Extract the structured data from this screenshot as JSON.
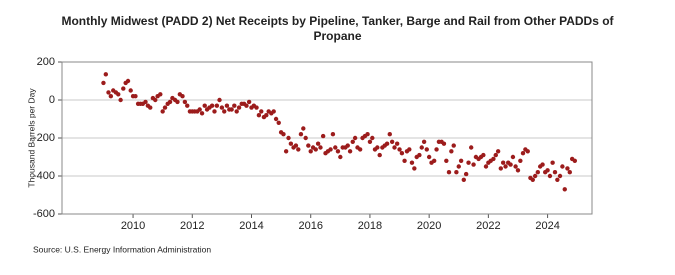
{
  "chart_data": {
    "type": "scatter",
    "title": "Monthly Midwest (PADD 2) Net Receipts by Pipeline, Tanker, Barge and Rail from Other PADDs of Propane",
    "ylabel": "Thousand Barrels per Day",
    "source": "Source: U.S. Energy Information Administration",
    "xlim": [
      2007.6,
      2025.5
    ],
    "xticks": [
      2010,
      2012,
      2014,
      2016,
      2018,
      2020,
      2022,
      2024
    ],
    "ylim": [
      -600,
      200
    ],
    "yticks": [
      -600,
      -400,
      -200,
      0,
      200
    ],
    "grid": true,
    "series": [
      {
        "name": "Net Receipts",
        "color": "#9c1c1c",
        "x": [
          2009.0,
          2009.08,
          2009.17,
          2009.25,
          2009.33,
          2009.42,
          2009.5,
          2009.58,
          2009.67,
          2009.75,
          2009.83,
          2009.92,
          2010.0,
          2010.08,
          2010.17,
          2010.25,
          2010.33,
          2010.42,
          2010.5,
          2010.58,
          2010.67,
          2010.75,
          2010.83,
          2010.92,
          2011.0,
          2011.08,
          2011.17,
          2011.25,
          2011.33,
          2011.42,
          2011.5,
          2011.58,
          2011.67,
          2011.75,
          2011.83,
          2011.92,
          2012.0,
          2012.08,
          2012.17,
          2012.25,
          2012.33,
          2012.42,
          2012.5,
          2012.58,
          2012.67,
          2012.75,
          2012.83,
          2012.92,
          2013.0,
          2013.08,
          2013.17,
          2013.25,
          2013.33,
          2013.42,
          2013.5,
          2013.58,
          2013.67,
          2013.75,
          2013.83,
          2013.92,
          2014.0,
          2014.08,
          2014.17,
          2014.25,
          2014.33,
          2014.42,
          2014.5,
          2014.58,
          2014.67,
          2014.75,
          2014.83,
          2014.92,
          2015.0,
          2015.08,
          2015.17,
          2015.25,
          2015.33,
          2015.42,
          2015.5,
          2015.58,
          2015.67,
          2015.75,
          2015.83,
          2015.92,
          2016.0,
          2016.08,
          2016.17,
          2016.25,
          2016.33,
          2016.42,
          2016.5,
          2016.58,
          2016.67,
          2016.75,
          2016.83,
          2016.92,
          2017.0,
          2017.08,
          2017.17,
          2017.25,
          2017.33,
          2017.42,
          2017.5,
          2017.58,
          2017.67,
          2017.75,
          2017.83,
          2017.92,
          2018.0,
          2018.08,
          2018.17,
          2018.25,
          2018.33,
          2018.42,
          2018.5,
          2018.58,
          2018.67,
          2018.75,
          2018.83,
          2018.92,
          2019.0,
          2019.08,
          2019.17,
          2019.25,
          2019.33,
          2019.42,
          2019.5,
          2019.58,
          2019.67,
          2019.75,
          2019.83,
          2019.92,
          2020.0,
          2020.08,
          2020.17,
          2020.25,
          2020.33,
          2020.42,
          2020.5,
          2020.58,
          2020.67,
          2020.75,
          2020.83,
          2020.92,
          2021.0,
          2021.08,
          2021.17,
          2021.25,
          2021.33,
          2021.42,
          2021.5,
          2021.58,
          2021.67,
          2021.75,
          2021.83,
          2021.92,
          2022.0,
          2022.08,
          2022.17,
          2022.25,
          2022.33,
          2022.42,
          2022.5,
          2022.58,
          2022.67,
          2022.75,
          2022.83,
          2022.92,
          2023.0,
          2023.08,
          2023.17,
          2023.25,
          2023.33,
          2023.42,
          2023.5,
          2023.58,
          2023.67,
          2023.75,
          2023.83,
          2023.92,
          2024.0,
          2024.08,
          2024.17,
          2024.25,
          2024.33,
          2024.42,
          2024.5,
          2024.58,
          2024.67,
          2024.75,
          2024.83,
          2024.92
        ],
        "values": [
          90,
          135,
          40,
          20,
          50,
          40,
          30,
          0,
          60,
          90,
          100,
          50,
          20,
          20,
          -20,
          -20,
          -20,
          -10,
          -30,
          -40,
          10,
          0,
          20,
          30,
          -60,
          -40,
          -20,
          -10,
          10,
          0,
          -10,
          30,
          20,
          -10,
          -30,
          -60,
          -60,
          -60,
          -60,
          -50,
          -70,
          -30,
          -50,
          -40,
          -30,
          -60,
          -30,
          0,
          -40,
          -60,
          -30,
          -50,
          -50,
          -30,
          -60,
          -40,
          -20,
          -20,
          -30,
          -10,
          -40,
          -30,
          -40,
          -80,
          -60,
          -90,
          -80,
          -60,
          -70,
          -60,
          -100,
          -120,
          -170,
          -180,
          -270,
          -200,
          -230,
          -250,
          -240,
          -260,
          -180,
          -150,
          -200,
          -240,
          -270,
          -250,
          -260,
          -230,
          -250,
          -190,
          -280,
          -270,
          -260,
          -180,
          -250,
          -270,
          -300,
          -250,
          -250,
          -240,
          -270,
          -220,
          -200,
          -250,
          -260,
          -200,
          -190,
          -180,
          -220,
          -200,
          -260,
          -250,
          -290,
          -250,
          -240,
          -230,
          -180,
          -220,
          -250,
          -230,
          -260,
          -280,
          -320,
          -270,
          -260,
          -330,
          -360,
          -300,
          -290,
          -250,
          -220,
          -260,
          -300,
          -330,
          -320,
          -260,
          -220,
          -220,
          -230,
          -320,
          -380,
          -270,
          -240,
          -380,
          -350,
          -320,
          -420,
          -390,
          -330,
          -250,
          -340,
          -300,
          -310,
          -300,
          -290,
          -350,
          -330,
          -320,
          -310,
          -290,
          -270,
          -360,
          -330,
          -350,
          -330,
          -340,
          -300,
          -350,
          -370,
          -320,
          -280,
          -260,
          -270,
          -410,
          -420,
          -400,
          -380,
          -350,
          -340,
          -380,
          -370,
          -400,
          -330,
          -380,
          -420,
          -400,
          -350,
          -470,
          -360,
          -380,
          -310,
          -320
        ]
      }
    ]
  }
}
